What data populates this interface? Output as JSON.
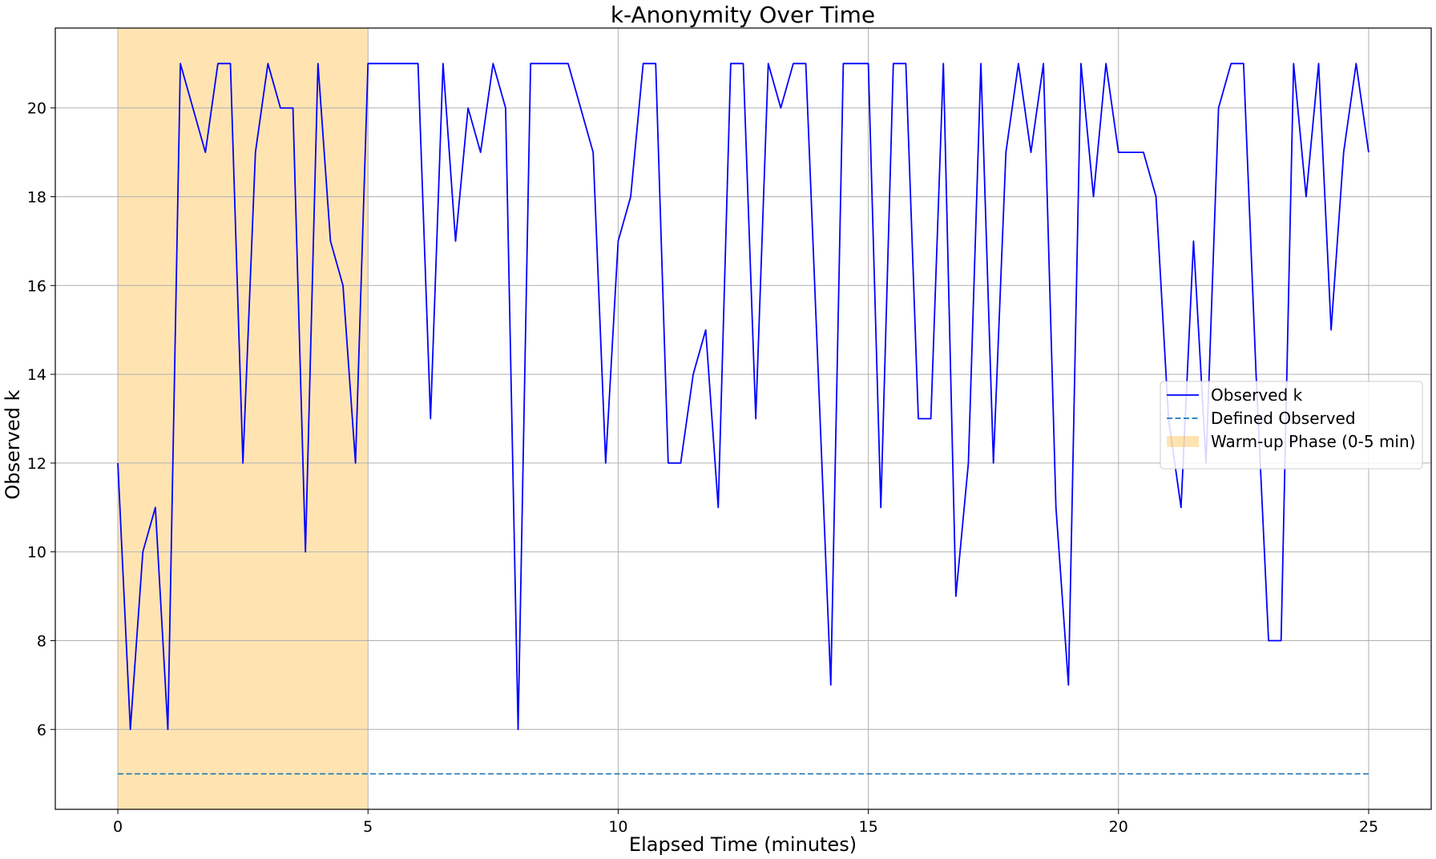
{
  "chart_data": {
    "type": "line",
    "title": "k-Anonymity Over Time",
    "xlabel": "Elapsed Time (minutes)",
    "ylabel": "Observed k",
    "xlim": [
      -1.25,
      26.25
    ],
    "ylim": [
      4.2,
      21.8
    ],
    "x_ticks": [
      0,
      5,
      10,
      15,
      20,
      25
    ],
    "y_ticks": [
      6,
      8,
      10,
      12,
      14,
      16,
      18,
      20
    ],
    "grid": true,
    "legend_position": "center-right",
    "series": [
      {
        "name": "Observed k",
        "color": "#0000ff",
        "style": "solid",
        "x": [
          0,
          0.25,
          0.5,
          0.75,
          1,
          1.25,
          1.5,
          1.75,
          2,
          2.25,
          2.5,
          2.75,
          3,
          3.25,
          3.5,
          3.75,
          4,
          4.25,
          4.5,
          4.75,
          5,
          5.25,
          5.5,
          5.75,
          6,
          6.25,
          6.5,
          6.75,
          7,
          7.25,
          7.5,
          7.75,
          8,
          8.25,
          8.5,
          8.75,
          9,
          9.25,
          9.5,
          9.75,
          10,
          10.25,
          10.5,
          10.75,
          11,
          11.25,
          11.5,
          11.75,
          12,
          12.25,
          12.5,
          12.75,
          13,
          13.25,
          13.5,
          13.75,
          14,
          14.25,
          14.5,
          14.75,
          15,
          15.25,
          15.5,
          15.75,
          16,
          16.25,
          16.5,
          16.75,
          17,
          17.25,
          17.5,
          17.75,
          18,
          18.25,
          18.5,
          18.75,
          19,
          19.25,
          19.5,
          19.75,
          20,
          20.25,
          20.5,
          20.75,
          21,
          21.25,
          21.5,
          21.75,
          22,
          22.25,
          22.5,
          22.75,
          23,
          23.25,
          23.5,
          23.75,
          24,
          24.25,
          24.5,
          24.75,
          25
        ],
        "y": [
          12,
          6,
          10,
          11,
          6,
          21,
          20,
          19,
          21,
          21,
          12,
          19,
          21,
          20,
          20,
          10,
          21,
          17,
          16,
          12,
          21,
          21,
          21,
          21,
          21,
          13,
          21,
          17,
          20,
          19,
          21,
          20,
          6,
          21,
          21,
          21,
          21,
          20,
          19,
          12,
          17,
          18,
          21,
          21,
          12,
          12,
          14,
          15,
          11,
          21,
          21,
          13,
          21,
          20,
          21,
          21,
          14,
          7,
          21,
          21,
          21,
          11,
          21,
          21,
          13,
          13,
          21,
          9,
          12,
          21,
          12,
          19,
          21,
          19,
          21,
          11,
          7,
          21,
          18,
          21,
          19,
          19,
          19,
          18,
          13,
          11,
          17,
          12,
          20,
          21,
          21,
          14,
          8,
          8,
          21,
          18,
          21,
          15,
          19,
          21,
          19
        ]
      },
      {
        "name": "Defined Observed",
        "color": "#1f77b4",
        "style": "dashed",
        "x": [
          0,
          25
        ],
        "y": [
          5,
          5
        ]
      }
    ],
    "shaded_regions": [
      {
        "name": "Warm-up Phase (0-5 min)",
        "x_start": 0,
        "x_end": 5,
        "color": "#ffa500",
        "opacity": 0.3
      }
    ]
  }
}
